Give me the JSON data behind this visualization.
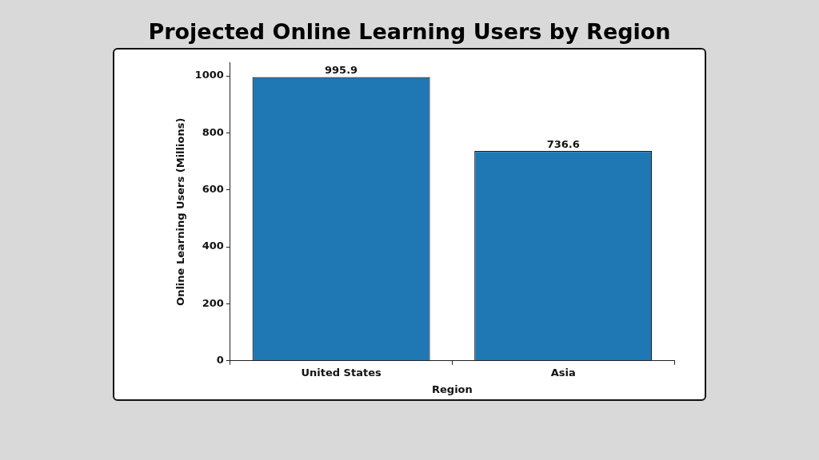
{
  "chart_data": {
    "type": "bar",
    "title": "Projected Online Learning Users by Region",
    "xlabel": "Region",
    "ylabel": "Online Learning Users (Millions)",
    "categories": [
      "United States",
      "Asia"
    ],
    "values": [
      995.9,
      736.6
    ],
    "color": "#1f77b4",
    "ylim": [
      0,
      1045.7
    ],
    "yticks": [
      0,
      200,
      400,
      600,
      800,
      1000
    ],
    "grid": false,
    "legend": false,
    "data_labels": true
  }
}
